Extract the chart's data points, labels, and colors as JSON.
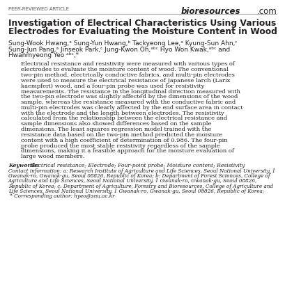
{
  "header_left": "PEER-REVIEWED ARTICLE",
  "header_right_plain": "bioresources",
  "header_right_suffix": ".com",
  "title_line1": "Investigation of Electrical Characteristics Using Various",
  "title_line2": "Electrodes for Evaluating the Moisture Content in Wood",
  "author_line1": "Sung-Wook Hwang,ᵃ Sung-Yun Hwang,ᵇ Tackyeong Lee,ᵃ Kyung-Sun Ahn,ᶜ",
  "author_line2": "Sung-Jun Pang,ᵃ Jinseok Park,ᶜ Jung-Kwon Oh,ᵃᵇᶜ Hyo Won Kwak,ᵃᵇᶜ and",
  "author_line3": "Hwanmyeong Yeo ᵃᵇᶜ,*",
  "abstract_lines": [
    "Electrical resistance and resistivity were measured with various types of",
    "electrodes to evaluate the moisture content of wood. The conventional",
    "two-pin method, electrically conductive fabrics, and multi-pin electrodes",
    "were used to measure the electrical resistance of Japanese larch (Larix",
    "kaempferi) wood, and a four-pin probe was used for resistivity",
    "measurements. The resistance in the longitudinal direction measured with",
    "the two-pin electrode was slightly affected by the dimensions of the wood",
    "sample, whereas the resistance measured with the conductive fabric and",
    "multi-pin electrodes was clearly affected by the end surface area in contact",
    "with the electrode and the length between electrodes. The resistivity",
    "calculated from the relationship between the electrical resistance and",
    "sample dimensions also showed differences based on the sample",
    "dimensions. The least squares regression model trained with the",
    "resistance data based on the two-pin method predicted the moisture",
    "content with a high coefficient of determination of 0.986. The four-pin",
    "probe produced the most stable resistivity regardless of the sample",
    "dimensions, making it a feasible approach for the moisture evaluation of",
    "large wood members."
  ],
  "keywords_label": "Keywords: ",
  "keywords_text": "Electrical resistance; Electrode; Four-point probe; Moisture content; Resistivity",
  "contact_lines": [
    "Contact information: a: Research Institute of Agriculture and Life Sciences, Seoul National University, 1",
    "Gwanak-ro, Gwanak-gu, Seoul 08826, Republic of Korea; b: Department of Forest Sciences, College of",
    "Agriculture and Life Sciences, Seoul National University, 1 Gwanak-ro, Gwanak-gu, Seoul 08826,",
    "Republic of Korea; c: Department of Agriculture, Forestry and Bioresources, College of Agriculture and",
    "Life Sciences, Seoul National University, 1 Gwanak-ro, Gwanak-gu, Seoul 08826, Republic of Korea;",
    " * Corresponding author: hyeo@snu.ac.kr"
  ],
  "bg_color": "#ffffff",
  "text_color": "#231f20",
  "header_text_color": "#58595b",
  "header_line_color": "#939598",
  "title_fontsize": 8.8,
  "authors_fontsize": 6.5,
  "abstract_fontsize": 6.0,
  "small_fontsize": 5.5,
  "header_fontsize": 5.0,
  "bioresources_fontsize": 8.5
}
